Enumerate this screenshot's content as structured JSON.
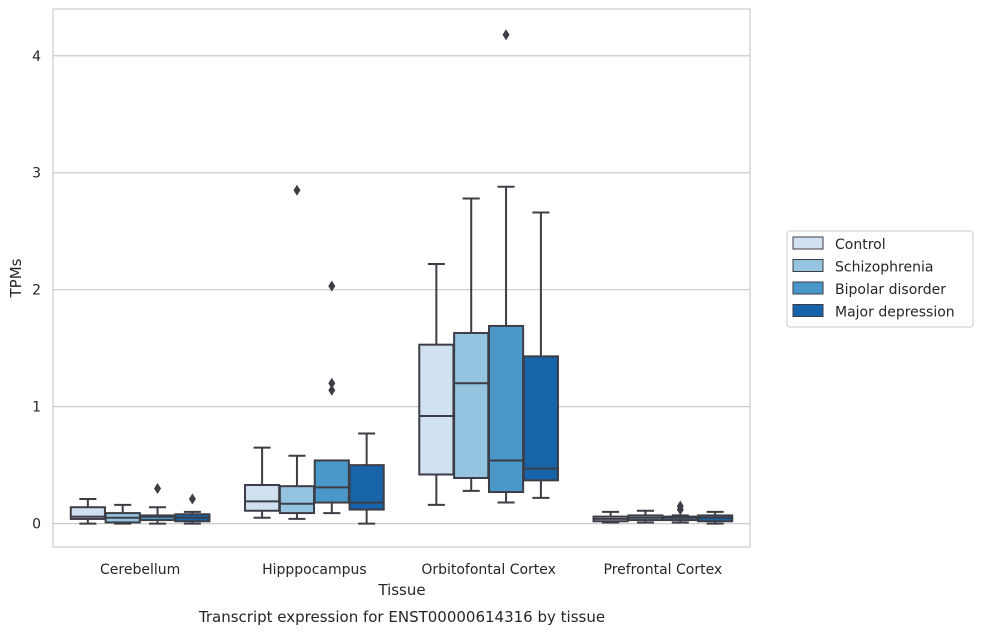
{
  "chart_data": {
    "type": "box",
    "title": "",
    "caption": "Transcript expression for ENST00000614316 by tissue",
    "xlabel": "Tissue",
    "ylabel": "TPMs",
    "ylim": [
      -0.2,
      4.4
    ],
    "yticks": [
      0,
      1,
      2,
      3,
      4
    ],
    "grid": "horizontal",
    "legend_position": "right",
    "categories": [
      "Cerebellum",
      "Hipppocampus",
      "Orbitofontal Cortex",
      "Prefrontal Cortex"
    ],
    "series": [
      {
        "name": "Control",
        "color": "#d0e1f2",
        "boxes": [
          {
            "whisker_low": 0.0,
            "q1": 0.04,
            "median": 0.06,
            "q3": 0.14,
            "whisker_high": 0.21,
            "outliers": []
          },
          {
            "whisker_low": 0.05,
            "q1": 0.11,
            "median": 0.19,
            "q3": 0.33,
            "whisker_high": 0.65,
            "outliers": []
          },
          {
            "whisker_low": 0.16,
            "q1": 0.42,
            "median": 0.92,
            "q3": 1.53,
            "whisker_high": 2.22,
            "outliers": []
          },
          {
            "whisker_low": 0.01,
            "q1": 0.02,
            "median": 0.04,
            "q3": 0.06,
            "whisker_high": 0.1,
            "outliers": []
          }
        ]
      },
      {
        "name": "Schizophrenia",
        "color": "#94c4df",
        "boxes": [
          {
            "whisker_low": 0.0,
            "q1": 0.01,
            "median": 0.05,
            "q3": 0.09,
            "whisker_high": 0.16,
            "outliers": []
          },
          {
            "whisker_low": 0.04,
            "q1": 0.09,
            "median": 0.17,
            "q3": 0.32,
            "whisker_high": 0.58,
            "outliers": [
              2.85
            ]
          },
          {
            "whisker_low": 0.28,
            "q1": 0.39,
            "median": 1.2,
            "q3": 1.63,
            "whisker_high": 2.78,
            "outliers": []
          },
          {
            "whisker_low": 0.01,
            "q1": 0.03,
            "median": 0.05,
            "q3": 0.07,
            "whisker_high": 0.11,
            "outliers": []
          }
        ]
      },
      {
        "name": "Bipolar disorder",
        "color": "#4a98c9",
        "boxes": [
          {
            "whisker_low": 0.0,
            "q1": 0.03,
            "median": 0.06,
            "q3": 0.07,
            "whisker_high": 0.14,
            "outliers": [
              0.3
            ]
          },
          {
            "whisker_low": 0.09,
            "q1": 0.18,
            "median": 0.31,
            "q3": 0.54,
            "whisker_high": 0.54,
            "outliers": [
              2.03,
              1.2,
              1.14
            ]
          },
          {
            "whisker_low": 0.18,
            "q1": 0.27,
            "median": 0.54,
            "q3": 1.69,
            "whisker_high": 2.88,
            "outliers": [
              4.18
            ]
          },
          {
            "whisker_low": 0.01,
            "q1": 0.03,
            "median": 0.05,
            "q3": 0.06,
            "whisker_high": 0.07,
            "outliers": [
              0.15,
              0.12
            ]
          }
        ]
      },
      {
        "name": "Major depression",
        "color": "#1764ab",
        "boxes": [
          {
            "whisker_low": 0.0,
            "q1": 0.02,
            "median": 0.05,
            "q3": 0.08,
            "whisker_high": 0.1,
            "outliers": [
              0.21
            ]
          },
          {
            "whisker_low": 0.0,
            "q1": 0.12,
            "median": 0.18,
            "q3": 0.5,
            "whisker_high": 0.77,
            "outliers": []
          },
          {
            "whisker_low": 0.22,
            "q1": 0.37,
            "median": 0.47,
            "q3": 1.43,
            "whisker_high": 2.66,
            "outliers": []
          },
          {
            "whisker_low": 0.0,
            "q1": 0.02,
            "median": 0.05,
            "q3": 0.07,
            "whisker_high": 0.1,
            "outliers": []
          }
        ]
      }
    ]
  }
}
